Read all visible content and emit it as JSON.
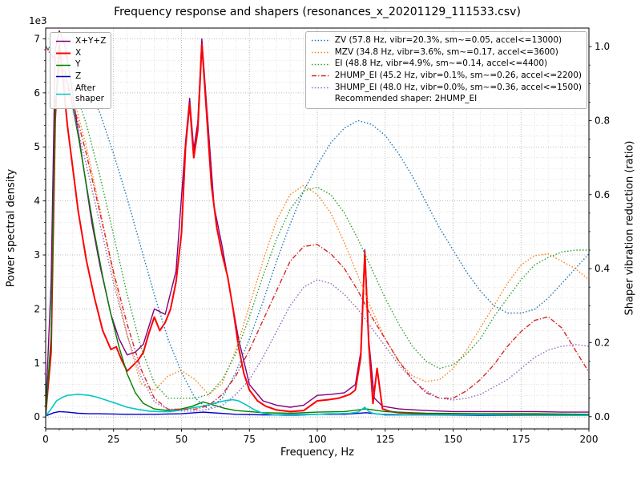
{
  "chart_data": {
    "type": "line",
    "title": "Frequency response and shapers (resonances_x_20201129_111533.csv)",
    "xlabel": "Frequency, Hz",
    "ylabel_left": "Power spectral density",
    "ylabel_right": "Shaper vibration reduction (ratio)",
    "y_left_offset_label": "1e3",
    "xlim": [
      0,
      200
    ],
    "ylim_left": [
      -0.22,
      7.2
    ],
    "ylim_right": [
      -0.033,
      1.05
    ],
    "x_ticks": [
      0,
      25,
      50,
      75,
      100,
      125,
      150,
      175,
      200
    ],
    "x_minor_step": 5,
    "y_left_ticks": [
      0,
      1,
      2,
      3,
      4,
      5,
      6,
      7
    ],
    "y_left_minor_step": 0.2,
    "y_right_ticks": [
      0,
      0.2,
      0.4,
      0.6,
      0.8,
      1.0
    ],
    "grid": {
      "major_color": "#a8a8a8",
      "minor_color": "#d8d8d8"
    },
    "psd_series": [
      {
        "name": "X+Y+Z",
        "color": "#800080",
        "style": "solid",
        "width": 1.4,
        "x": [
          0,
          2,
          3.5,
          5,
          7,
          9,
          11,
          14,
          17,
          20,
          24,
          27,
          30,
          33,
          36,
          40,
          44,
          48,
          51.5,
          53,
          54.5,
          56,
          57.5,
          59,
          62,
          65,
          68,
          71,
          75,
          80,
          85,
          90,
          95,
          100,
          105,
          110,
          114,
          116,
          117.5,
          119,
          121,
          124,
          130,
          140,
          150,
          160,
          170,
          180,
          190,
          200
        ],
        "v": [
          0.1,
          2.5,
          6.8,
          7.15,
          6.9,
          6.3,
          5.6,
          4.6,
          3.6,
          2.8,
          1.9,
          1.45,
          1.15,
          1.2,
          1.35,
          2.0,
          1.9,
          2.7,
          5.1,
          5.9,
          4.95,
          5.45,
          7.0,
          5.95,
          3.9,
          3.15,
          2.3,
          1.45,
          0.6,
          0.3,
          0.22,
          0.18,
          0.22,
          0.4,
          0.42,
          0.45,
          0.6,
          1.2,
          3.1,
          1.4,
          0.35,
          0.2,
          0.15,
          0.12,
          0.1,
          0.1,
          0.1,
          0.1,
          0.09,
          0.09
        ]
      },
      {
        "name": "X",
        "color": "#ff0000",
        "style": "solid",
        "width": 2.0,
        "x": [
          0,
          2,
          3.5,
          5,
          6.5,
          8,
          10,
          12,
          15,
          18,
          21,
          24,
          26,
          28,
          30,
          32,
          34,
          36,
          38,
          40,
          42,
          44,
          46,
          48,
          50,
          51.5,
          53,
          54.5,
          56,
          57.5,
          59,
          61,
          63,
          65,
          67,
          69,
          71,
          73,
          75,
          78,
          81,
          85,
          90,
          95,
          100,
          104,
          108,
          112,
          114,
          116,
          117.5,
          119,
          120.5,
          122,
          124,
          127,
          130,
          135,
          140,
          150,
          160,
          170,
          180,
          190,
          200
        ],
        "v": [
          0.05,
          1.2,
          5.5,
          6.9,
          6.2,
          5.4,
          4.6,
          3.8,
          2.9,
          2.2,
          1.6,
          1.25,
          1.3,
          1.05,
          0.85,
          0.95,
          1.05,
          1.2,
          1.55,
          1.85,
          1.6,
          1.75,
          2.0,
          2.5,
          3.4,
          5.0,
          5.8,
          4.8,
          5.3,
          6.9,
          5.8,
          4.3,
          3.5,
          3.0,
          2.6,
          2.0,
          1.3,
          0.8,
          0.5,
          0.3,
          0.2,
          0.13,
          0.1,
          0.12,
          0.3,
          0.32,
          0.35,
          0.42,
          0.5,
          1.1,
          3.05,
          1.3,
          0.25,
          0.9,
          0.15,
          0.1,
          0.08,
          0.07,
          0.06,
          0.05,
          0.05,
          0.05,
          0.04,
          0.04,
          0.04
        ]
      },
      {
        "name": "Y",
        "color": "#008000",
        "style": "solid",
        "width": 1.4,
        "x": [
          0,
          2,
          3.5,
          5,
          7,
          9,
          12,
          15,
          18,
          21,
          24,
          27,
          30,
          33,
          36,
          40,
          45,
          50,
          54,
          58,
          62,
          66,
          70,
          75,
          80,
          90,
          100,
          110,
          118,
          125,
          140,
          160,
          180,
          200
        ],
        "v": [
          0.05,
          1.5,
          5.8,
          6.5,
          6.4,
          6.0,
          5.2,
          4.3,
          3.4,
          2.6,
          1.9,
          1.3,
          0.8,
          0.45,
          0.25,
          0.15,
          0.12,
          0.15,
          0.2,
          0.28,
          0.22,
          0.16,
          0.12,
          0.1,
          0.08,
          0.07,
          0.09,
          0.1,
          0.15,
          0.1,
          0.07,
          0.06,
          0.06,
          0.05
        ]
      },
      {
        "name": "Z",
        "color": "#0000cc",
        "style": "solid",
        "width": 1.4,
        "x": [
          0,
          3,
          5,
          8,
          12,
          16,
          20,
          30,
          40,
          50,
          58,
          70,
          80,
          90,
          100,
          110,
          118,
          125,
          140,
          160,
          180,
          200
        ],
        "v": [
          0.02,
          0.08,
          0.1,
          0.09,
          0.07,
          0.06,
          0.06,
          0.05,
          0.05,
          0.06,
          0.09,
          0.05,
          0.04,
          0.04,
          0.05,
          0.05,
          0.08,
          0.04,
          0.04,
          0.03,
          0.03,
          0.03
        ]
      },
      {
        "name": "After\nshaper",
        "color": "#00c8c8",
        "style": "solid",
        "width": 1.6,
        "x": [
          0,
          2,
          4,
          6,
          8,
          10,
          12,
          14,
          16,
          18,
          20,
          23,
          26,
          30,
          34,
          38,
          42,
          46,
          50,
          54,
          58,
          61,
          64,
          67,
          69,
          71,
          74,
          77,
          80,
          84,
          88,
          92,
          96,
          100,
          104,
          108,
          112,
          115,
          117.5,
          119,
          121,
          124,
          128,
          135,
          145,
          160,
          180,
          200
        ],
        "v": [
          0.02,
          0.15,
          0.3,
          0.36,
          0.4,
          0.41,
          0.42,
          0.41,
          0.4,
          0.38,
          0.35,
          0.3,
          0.25,
          0.18,
          0.14,
          0.11,
          0.1,
          0.1,
          0.13,
          0.17,
          0.2,
          0.24,
          0.28,
          0.31,
          0.32,
          0.3,
          0.22,
          0.13,
          0.07,
          0.04,
          0.03,
          0.03,
          0.04,
          0.05,
          0.06,
          0.06,
          0.07,
          0.09,
          0.18,
          0.1,
          0.06,
          0.05,
          0.05,
          0.04,
          0.04,
          0.04,
          0.03,
          0.03
        ]
      }
    ],
    "shaper_x": [
      0,
      5,
      10,
      15,
      20,
      25,
      30,
      35,
      40,
      45,
      50,
      55,
      60,
      65,
      70,
      75,
      80,
      85,
      90,
      95,
      100,
      105,
      110,
      115,
      120,
      125,
      130,
      135,
      140,
      145,
      150,
      155,
      160,
      165,
      170,
      175,
      180,
      185,
      190,
      195,
      200
    ],
    "shaper_series": [
      {
        "name": "ZV",
        "label": "ZV (57.8 Hz, vibr=20.3%, sm~=0.05, accel<=13000)",
        "color": "#1f77b4",
        "style": "dotted",
        "v": [
          1.0,
          0.99,
          0.96,
          0.9,
          0.82,
          0.71,
          0.59,
          0.46,
          0.33,
          0.21,
          0.12,
          0.05,
          0.02,
          0.05,
          0.12,
          0.21,
          0.31,
          0.42,
          0.52,
          0.61,
          0.68,
          0.74,
          0.78,
          0.8,
          0.79,
          0.76,
          0.71,
          0.65,
          0.58,
          0.51,
          0.45,
          0.39,
          0.34,
          0.3,
          0.28,
          0.28,
          0.29,
          0.32,
          0.36,
          0.4,
          0.44
        ]
      },
      {
        "name": "MZV",
        "label": "MZV (34.8 Hz, vibr=3.6%, sm~=0.17, accel<=3600)",
        "color": "#ff7f0e",
        "style": "dotted",
        "v": [
          1.0,
          0.96,
          0.87,
          0.73,
          0.56,
          0.38,
          0.22,
          0.09,
          0.07,
          0.11,
          0.125,
          0.1,
          0.06,
          0.09,
          0.18,
          0.3,
          0.42,
          0.53,
          0.6,
          0.625,
          0.6,
          0.55,
          0.47,
          0.38,
          0.29,
          0.21,
          0.15,
          0.11,
          0.095,
          0.1,
          0.13,
          0.18,
          0.24,
          0.3,
          0.36,
          0.41,
          0.435,
          0.44,
          0.42,
          0.4,
          0.37
        ]
      },
      {
        "name": "EI",
        "label": "EI (48.8 Hz, vibr=4.9%, sm~=0.14, accel<=4400)",
        "color": "#2ca02c",
        "style": "dotted",
        "v": [
          1.0,
          0.97,
          0.9,
          0.79,
          0.65,
          0.49,
          0.33,
          0.19,
          0.09,
          0.05,
          0.05,
          0.05,
          0.06,
          0.1,
          0.17,
          0.27,
          0.38,
          0.48,
          0.56,
          0.61,
          0.62,
          0.6,
          0.55,
          0.48,
          0.4,
          0.32,
          0.25,
          0.19,
          0.15,
          0.13,
          0.14,
          0.17,
          0.21,
          0.27,
          0.32,
          0.37,
          0.41,
          0.43,
          0.445,
          0.45,
          0.45
        ]
      },
      {
        "name": "2HUMP_EI",
        "label": "2HUMP_EI (45.2 Hz, vibr=0.1%, sm~=0.26, accel<=2200)",
        "color": "#d62728",
        "style": "dashdot",
        "v": [
          1.0,
          0.95,
          0.85,
          0.71,
          0.55,
          0.39,
          0.25,
          0.13,
          0.05,
          0.02,
          0.02,
          0.02,
          0.03,
          0.06,
          0.11,
          0.18,
          0.26,
          0.34,
          0.42,
          0.46,
          0.465,
          0.44,
          0.4,
          0.34,
          0.27,
          0.21,
          0.15,
          0.1,
          0.065,
          0.05,
          0.05,
          0.07,
          0.1,
          0.14,
          0.19,
          0.23,
          0.26,
          0.27,
          0.24,
          0.18,
          0.12
        ]
      },
      {
        "name": "3HUMP_EI",
        "label": "3HUMP_EI (48.0 Hz, vibr=0.0%, sm~=0.36, accel<=1500)",
        "color": "#9467bd",
        "style": "dotted",
        "v": [
          1.0,
          0.94,
          0.83,
          0.68,
          0.52,
          0.36,
          0.22,
          0.11,
          0.04,
          0.02,
          0.015,
          0.015,
          0.02,
          0.03,
          0.06,
          0.1,
          0.16,
          0.23,
          0.3,
          0.35,
          0.37,
          0.36,
          0.33,
          0.29,
          0.24,
          0.19,
          0.14,
          0.1,
          0.07,
          0.05,
          0.045,
          0.05,
          0.06,
          0.08,
          0.1,
          0.13,
          0.16,
          0.18,
          0.19,
          0.195,
          0.19
        ]
      }
    ],
    "recommended_label": "Recommended shaper: 2HUMP_EI"
  }
}
